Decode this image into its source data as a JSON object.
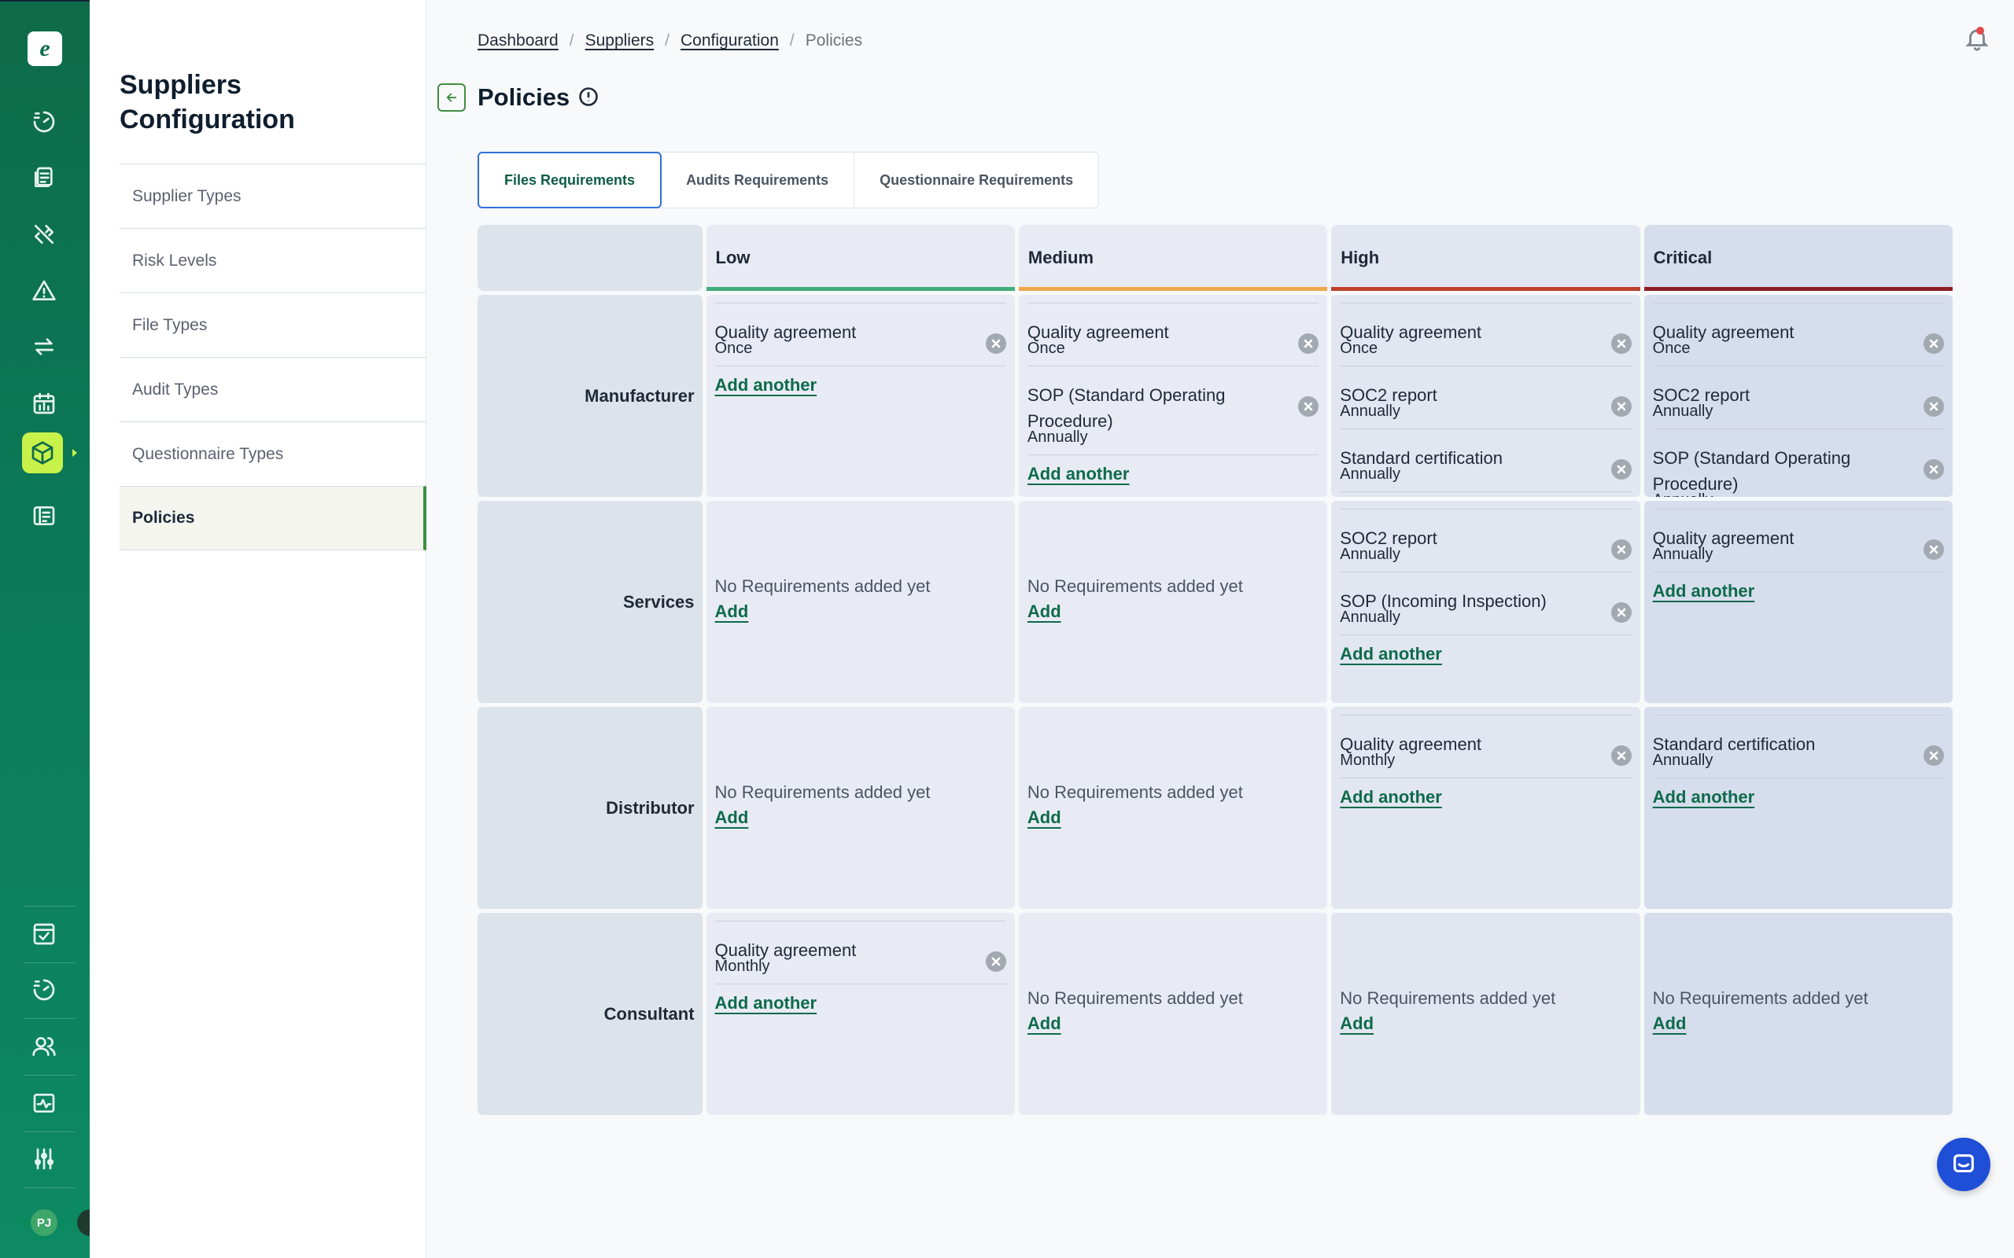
{
  "app": {
    "logo_letter": "e",
    "user_initials": "PJ"
  },
  "rail": {
    "icons": [
      "dashboard-icon",
      "documents-icon",
      "tools-icon",
      "alert-icon",
      "exchange-icon",
      "calendar-icon",
      "suppliers-box-icon",
      "forms-icon"
    ],
    "bottom_icons": [
      "checklist-icon",
      "dashboard-2-icon",
      "users-icon",
      "activity-icon",
      "settings-sliders-icon"
    ]
  },
  "sidebar": {
    "title": "Suppliers Configuration",
    "items": [
      {
        "label": "Supplier Types"
      },
      {
        "label": "Risk Levels"
      },
      {
        "label": "File Types"
      },
      {
        "label": "Audit Types"
      },
      {
        "label": "Questionnaire Types"
      },
      {
        "label": "Policies"
      }
    ]
  },
  "breadcrumb": {
    "items": [
      "Dashboard",
      "Suppliers",
      "Configuration"
    ],
    "current": "Policies"
  },
  "page": {
    "title": "Policies"
  },
  "tabs": [
    "Files Requirements",
    "Audits Requirements",
    "Questionnaire Requirements"
  ],
  "empty_text": "No Requirements added yet",
  "add_label": "Add",
  "add_another_label": "Add another",
  "colors": {
    "low": "#3fae7a",
    "medium": "#f0a64b",
    "high": "#c0402a",
    "critical": "#8f1d24",
    "brand": "#0e6b4a"
  },
  "grid": {
    "levels": [
      "Low",
      "Medium",
      "High",
      "Critical"
    ],
    "rows": [
      {
        "type": "Manufacturer",
        "cells": [
          [
            {
              "name": "Quality agreement",
              "freq": "Once"
            }
          ],
          [
            {
              "name": "Quality agreement",
              "freq": "Once"
            },
            {
              "name": "SOP (Standard Operating Procedure)",
              "freq": "Annually"
            }
          ],
          [
            {
              "name": "Quality agreement",
              "freq": "Once"
            },
            {
              "name": "SOC2 report",
              "freq": "Annually"
            },
            {
              "name": "Standard certification",
              "freq": "Annually"
            }
          ],
          [
            {
              "name": "Quality agreement",
              "freq": "Once"
            },
            {
              "name": "SOC2 report",
              "freq": "Annually"
            },
            {
              "name": "SOP (Standard Operating Procedure)",
              "freq": "Annually"
            }
          ]
        ]
      },
      {
        "type": "Services",
        "cells": [
          [],
          [],
          [
            {
              "name": "SOC2 report",
              "freq": "Annually"
            },
            {
              "name": "SOP (Incoming Inspection)",
              "freq": "Annually"
            }
          ],
          [
            {
              "name": "Quality agreement",
              "freq": "Annually"
            }
          ]
        ]
      },
      {
        "type": "Distributor",
        "cells": [
          [],
          [],
          [
            {
              "name": "Quality agreement",
              "freq": "Monthly"
            }
          ],
          [
            {
              "name": "Standard certification",
              "freq": "Annually"
            }
          ]
        ]
      },
      {
        "type": "Consultant",
        "cells": [
          [
            {
              "name": "Quality agreement",
              "freq": "Monthly"
            }
          ],
          [],
          [],
          []
        ]
      }
    ]
  }
}
